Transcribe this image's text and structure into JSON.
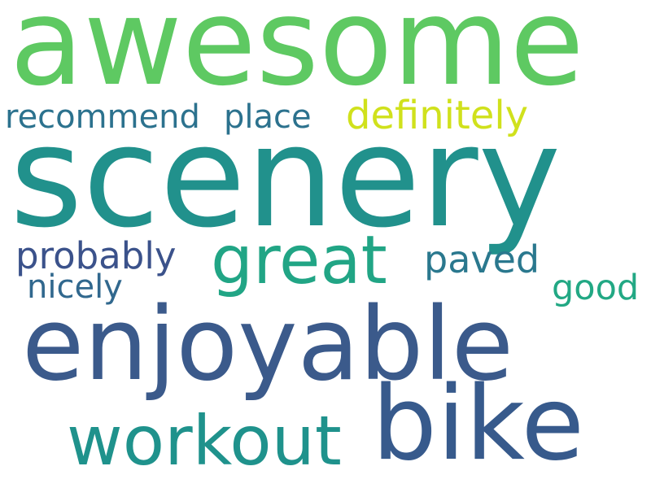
{
  "words": [
    {
      "key": "awesome",
      "text": "awesome",
      "color": "#5ec962"
    },
    {
      "key": "recommend",
      "text": "recommend",
      "color": "#2c728e"
    },
    {
      "key": "place",
      "text": "place",
      "color": "#2c728e"
    },
    {
      "key": "definitely",
      "text": "definitely",
      "color": "#d0e11c"
    },
    {
      "key": "scenery",
      "text": "scenery",
      "color": "#21918c"
    },
    {
      "key": "great",
      "text": "great",
      "color": "#21a585"
    },
    {
      "key": "probably",
      "text": "probably",
      "color": "#3b528b"
    },
    {
      "key": "paved",
      "text": "paved",
      "color": "#2a788e"
    },
    {
      "key": "nicely",
      "text": "nicely",
      "color": "#31688e"
    },
    {
      "key": "good",
      "text": "good",
      "color": "#22a884"
    },
    {
      "key": "enjoyable",
      "text": "enjoyable",
      "color": "#3b5a8b"
    },
    {
      "key": "workout",
      "text": "workout",
      "color": "#1f928c"
    },
    {
      "key": "bike",
      "text": "bike",
      "color": "#375a8c"
    }
  ]
}
